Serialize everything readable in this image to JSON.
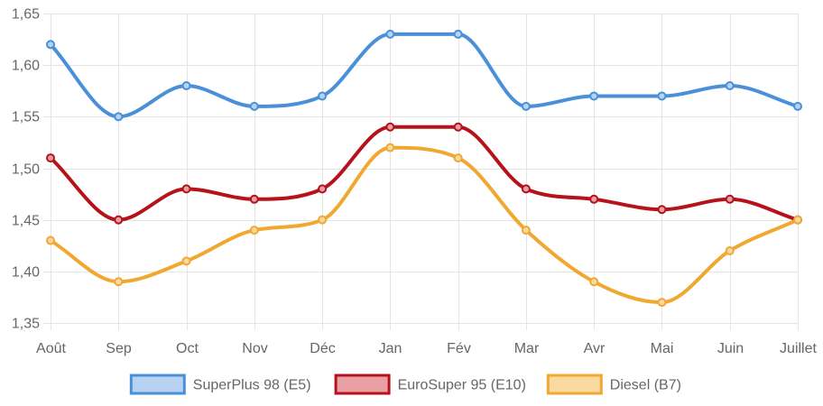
{
  "chart_data": {
    "type": "line",
    "categories": [
      "Août",
      "Sep",
      "Oct",
      "Nov",
      "Déc",
      "Jan",
      "Fév",
      "Mar",
      "Avr",
      "Mai",
      "Juin",
      "Juillet"
    ],
    "ylim": [
      1.35,
      1.65
    ],
    "yticks": [
      "1,35",
      "1,40",
      "1,45",
      "1,50",
      "1,55",
      "1,60",
      "1,65"
    ],
    "ytick_values": [
      1.35,
      1.4,
      1.45,
      1.5,
      1.55,
      1.6,
      1.65
    ],
    "grid": true,
    "legend_position": "bottom",
    "series": [
      {
        "name": "SuperPlus 98 (E5)",
        "color": "#4a90d9",
        "fill": "#b8d3f2",
        "values": [
          1.62,
          1.55,
          1.58,
          1.56,
          1.57,
          1.63,
          1.63,
          1.56,
          1.57,
          1.57,
          1.58,
          1.56
        ]
      },
      {
        "name": "EuroSuper 95 (E10)",
        "color": "#b5121b",
        "fill": "#e8a0a4",
        "values": [
          1.51,
          1.45,
          1.48,
          1.47,
          1.48,
          1.54,
          1.54,
          1.48,
          1.47,
          1.46,
          1.47,
          1.45
        ]
      },
      {
        "name": "Diesel (B7)",
        "color": "#f0a830",
        "fill": "#fbd9a3",
        "values": [
          1.43,
          1.39,
          1.41,
          1.44,
          1.45,
          1.52,
          1.51,
          1.44,
          1.39,
          1.37,
          1.42,
          1.45
        ]
      }
    ]
  }
}
